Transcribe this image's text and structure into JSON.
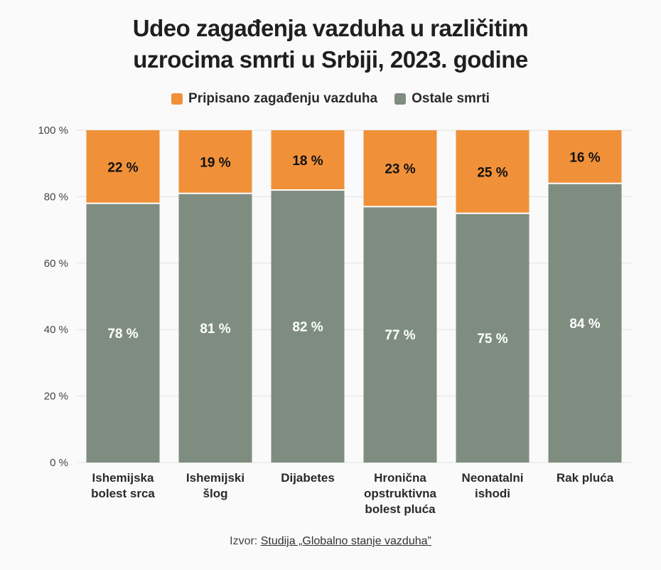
{
  "title_lines": [
    "Udeo zagađenja vazduha u različitim",
    "uzrocima smrti u Srbiji, 2023. godine"
  ],
  "legend": [
    {
      "label": "Pripisano zagađenju vazduha",
      "color": "#f0913a"
    },
    {
      "label": "Ostale smrti",
      "color": "#7f8d80"
    }
  ],
  "source": {
    "prefix": "Izvor:",
    "link_text": "Studija „Globalno stanje vazduha”"
  },
  "chart_data": {
    "type": "bar",
    "stacked": true,
    "categories": [
      [
        "Ishemijska",
        "bolest srca"
      ],
      [
        "Ishemijski",
        "šlog"
      ],
      [
        "Dijabetes"
      ],
      [
        "Hronična",
        "opstruktivna",
        "bolest pluća"
      ],
      [
        "Neonatalni",
        "ishodi"
      ],
      [
        "Rak pluća"
      ]
    ],
    "series": [
      {
        "name": "Ostale smrti",
        "color": "#7f8d80",
        "values": [
          78,
          81,
          82,
          77,
          75,
          84
        ],
        "labels": [
          "78 %",
          "81 %",
          "82 %",
          "77 %",
          "75 %",
          "84 %"
        ]
      },
      {
        "name": "Pripisano zagađenju vazduha",
        "color": "#f0913a",
        "values": [
          22,
          19,
          18,
          23,
          25,
          16
        ],
        "labels": [
          "22 %",
          "19 %",
          "18 %",
          "23 %",
          "25 %",
          "16 %"
        ]
      }
    ],
    "yticks": [
      "0 %",
      "20 %",
      "40 %",
      "60 %",
      "80 %",
      "100 %"
    ],
    "ytick_values": [
      0,
      20,
      40,
      60,
      80,
      100
    ],
    "ylim": [
      0,
      100
    ],
    "grid": true
  }
}
